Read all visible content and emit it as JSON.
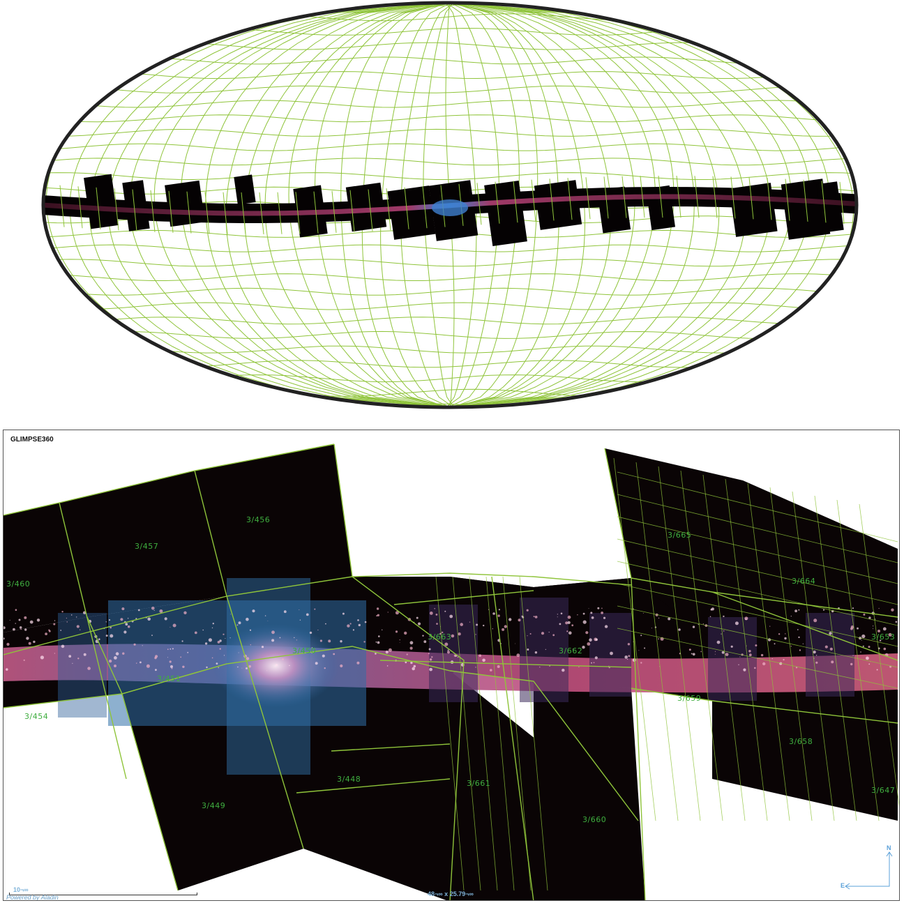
{
  "survey": {
    "name": "GLIMPSE360"
  },
  "tiles": [
    {
      "label": "3/460"
    },
    {
      "label": "3/457"
    },
    {
      "label": "3/456"
    },
    {
      "label": "3/665"
    },
    {
      "label": "3/664"
    },
    {
      "label": "3/653"
    },
    {
      "label": "3/663"
    },
    {
      "label": "3/450"
    },
    {
      "label": "3/662"
    },
    {
      "label": "3/451"
    },
    {
      "label": "3/659"
    },
    {
      "label": "3/454"
    },
    {
      "label": "3/658"
    },
    {
      "label": "3/448"
    },
    {
      "label": "3/661"
    },
    {
      "label": "3/647"
    },
    {
      "label": "3/449"
    },
    {
      "label": "3/660"
    }
  ],
  "scale": {
    "label": "10¬∞"
  },
  "credit": {
    "text": "Powered by Aladin"
  },
  "fov": {
    "text": "48¬∞ x 25.79¬∞"
  },
  "compass": {
    "north": "N",
    "east": "E"
  },
  "colors": {
    "grid": "#8fc43a",
    "sky": "#0a0405",
    "label": "#3fae3f",
    "overlay": "#7fb3d9"
  },
  "icons": {
    "compass": "compass-arrows-icon"
  }
}
